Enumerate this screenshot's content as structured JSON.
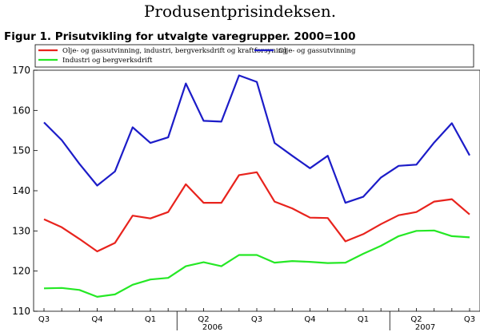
{
  "page_title": "Produsentprisindeksen.",
  "chart_data": {
    "type": "line",
    "title": "Figur 1. Prisutvikling for utvalgte varegrupper. 2000=100",
    "ylim": [
      110,
      170
    ],
    "yticks": [
      110,
      120,
      130,
      140,
      150,
      160,
      170
    ],
    "grid": false,
    "legend_position": "top",
    "x_tick_labels": [
      "Q3",
      "Q4",
      "Q1",
      "Q2",
      "Q3",
      "Q4",
      "Q1",
      "Q2",
      "Q3"
    ],
    "year_labels": [
      "2006",
      "2007"
    ],
    "series": [
      {
        "name": "Olje- og gassutvinning, industri, bergverksdrift og kraftforsyning",
        "color": "#e8231d",
        "values": [
          132.9,
          130.9,
          128.0,
          124.9,
          127.0,
          133.8,
          133.1,
          134.7,
          141.6,
          137.0,
          137.0,
          143.9,
          144.6,
          137.3,
          135.6,
          133.3,
          133.2,
          127.4,
          129.2,
          131.7,
          133.9,
          134.7,
          137.3,
          137.9,
          134.1
        ]
      },
      {
        "name": "Olje- og gassutvinning",
        "color": "#1c1cc8",
        "values": [
          157.0,
          152.6,
          146.7,
          141.3,
          144.8,
          155.8,
          151.9,
          153.3,
          166.7,
          157.4,
          157.2,
          168.7,
          167.1,
          151.9,
          148.7,
          145.6,
          148.7,
          137.0,
          138.5,
          143.3,
          146.2,
          146.5,
          152.0,
          156.8,
          148.8
        ]
      },
      {
        "name": "Industri og bergverksdrift",
        "color": "#25e825",
        "values": [
          115.7,
          115.8,
          115.3,
          113.6,
          114.2,
          116.6,
          117.9,
          118.3,
          121.2,
          122.2,
          121.2,
          124.0,
          124.0,
          122.1,
          122.5,
          122.3,
          122.0,
          122.1,
          124.3,
          126.3,
          128.7,
          130.0,
          130.1,
          128.7,
          128.4
        ]
      }
    ]
  }
}
